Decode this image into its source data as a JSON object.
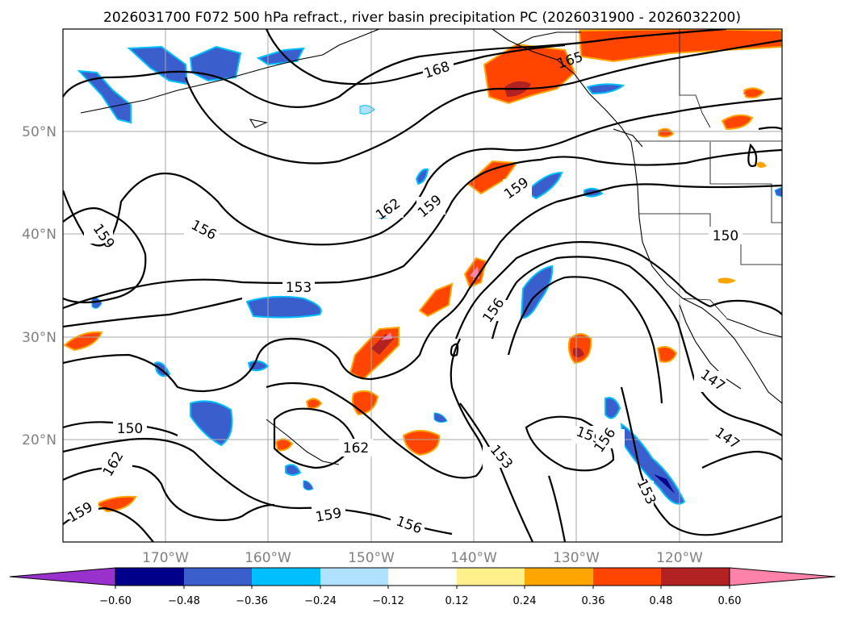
{
  "title": "2026031700 F072 500 hPa refract., river basin precipitation PC (2026031900 - 2026032200)",
  "lat_labels": [
    "50°N",
    "40°N",
    "30°N",
    "20°N"
  ],
  "lon_labels": [
    "170°W",
    "160°W",
    "150°W",
    "140°W",
    "130°W",
    "120°W"
  ],
  "colorbar": {
    "ticks": [
      "−0.60",
      "−0.48",
      "−0.36",
      "−0.24",
      "−0.12",
      "0.12",
      "0.24",
      "0.36",
      "0.48",
      "0.60"
    ],
    "colors": [
      "#9932cc",
      "#00008b",
      "#3a5fcd",
      "#00bfff",
      "#b0e2ff",
      "#ffffff",
      "#fff08c",
      "#ffa500",
      "#ff4500",
      "#b22222",
      "#ff82ab"
    ]
  },
  "contour_labels": [
    "168",
    "165",
    "159",
    "162",
    "159",
    "159",
    "156",
    "159",
    "153",
    "156",
    "150",
    "150",
    "162",
    "159",
    "162",
    "159",
    "156",
    "153",
    "159",
    "156",
    "153",
    "147",
    "147"
  ],
  "chart_data": {
    "type": "map",
    "projection": "plate carree",
    "lon_range": [
      -180,
      -110
    ],
    "lat_range": [
      10,
      60
    ],
    "field": "500 hPa refract. (contours)",
    "shading": "river basin precipitation PC",
    "levels": [
      -0.6,
      -0.48,
      -0.36,
      -0.24,
      -0.12,
      0.12,
      0.24,
      0.36,
      0.48,
      0.6
    ],
    "grid": true
  }
}
